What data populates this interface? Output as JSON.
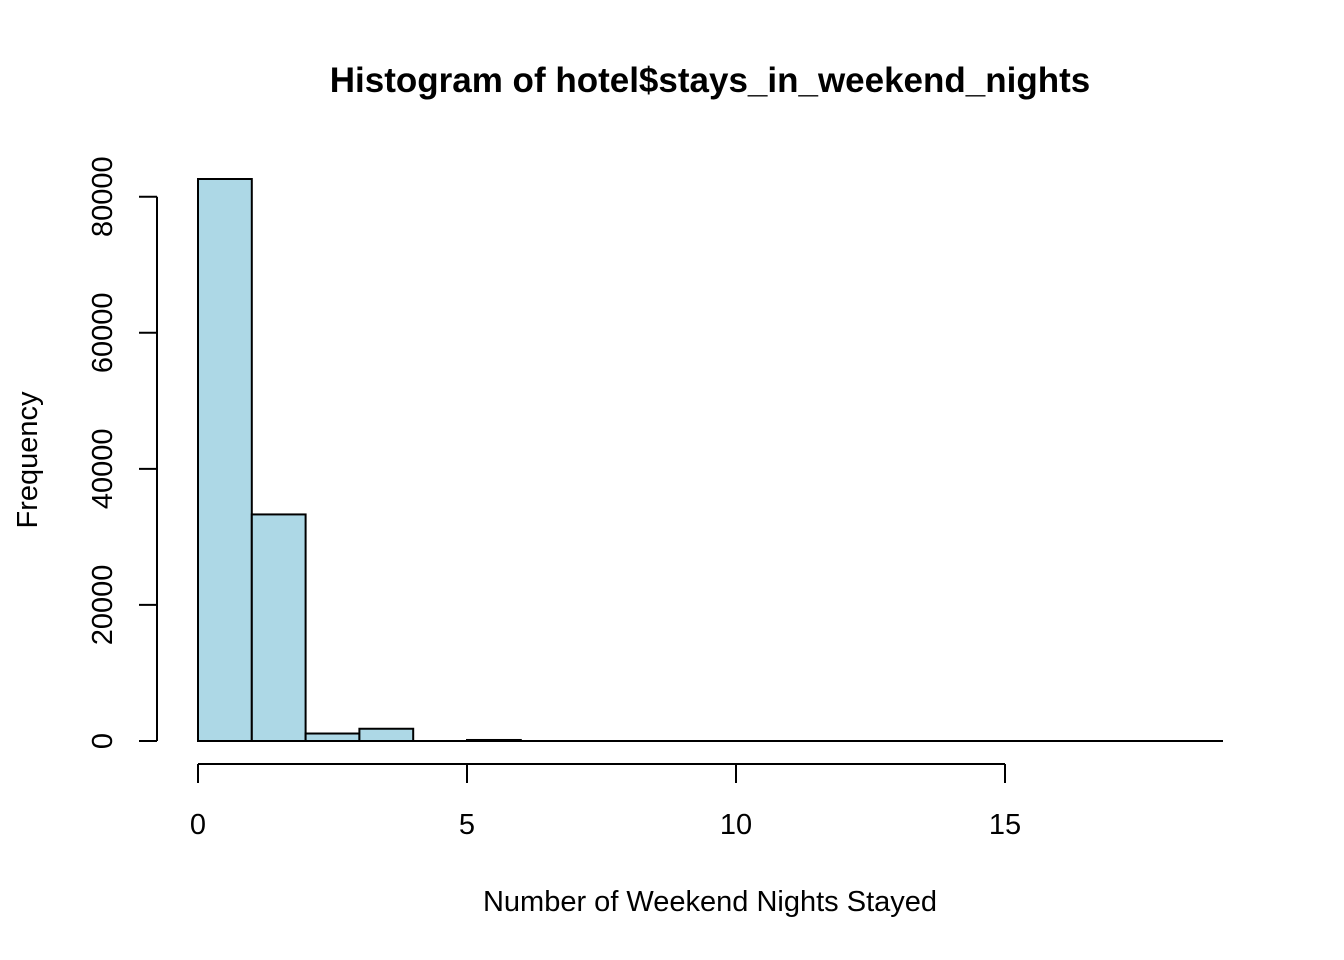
{
  "chart_data": {
    "type": "bar",
    "title": "Histogram of hotel$stays_in_weekend_nights",
    "xlabel": "Number of Weekend Nights Stayed",
    "ylabel": "Frequency",
    "bar_color": "#add8e6",
    "border_color": "#000000",
    "bins": [
      {
        "start": 0,
        "end": 1,
        "count": 82600
      },
      {
        "start": 1,
        "end": 2,
        "count": 33300
      },
      {
        "start": 2,
        "end": 3,
        "count": 1100
      },
      {
        "start": 3,
        "end": 4,
        "count": 1800
      },
      {
        "start": 4,
        "end": 5,
        "count": 0
      },
      {
        "start": 5,
        "end": 6,
        "count": 150
      },
      {
        "start": 6,
        "end": 7,
        "count": 0
      },
      {
        "start": 7,
        "end": 8,
        "count": 0
      },
      {
        "start": 8,
        "end": 9,
        "count": 0
      },
      {
        "start": 9,
        "end": 10,
        "count": 0
      },
      {
        "start": 10,
        "end": 11,
        "count": 0
      },
      {
        "start": 11,
        "end": 12,
        "count": 0
      },
      {
        "start": 12,
        "end": 13,
        "count": 0
      },
      {
        "start": 13,
        "end": 14,
        "count": 0
      },
      {
        "start": 14,
        "end": 15,
        "count": 0
      },
      {
        "start": 15,
        "end": 16,
        "count": 0
      },
      {
        "start": 16,
        "end": 17,
        "count": 0
      },
      {
        "start": 17,
        "end": 18,
        "count": 0
      },
      {
        "start": 18,
        "end": 19,
        "count": 0
      }
    ],
    "x_ticks": [
      0,
      5,
      10,
      15
    ],
    "y_ticks": [
      0,
      20000,
      40000,
      60000,
      80000
    ],
    "xlim": [
      0,
      19
    ],
    "ylim": [
      0,
      82600
    ],
    "grid": false,
    "legend": "none"
  }
}
